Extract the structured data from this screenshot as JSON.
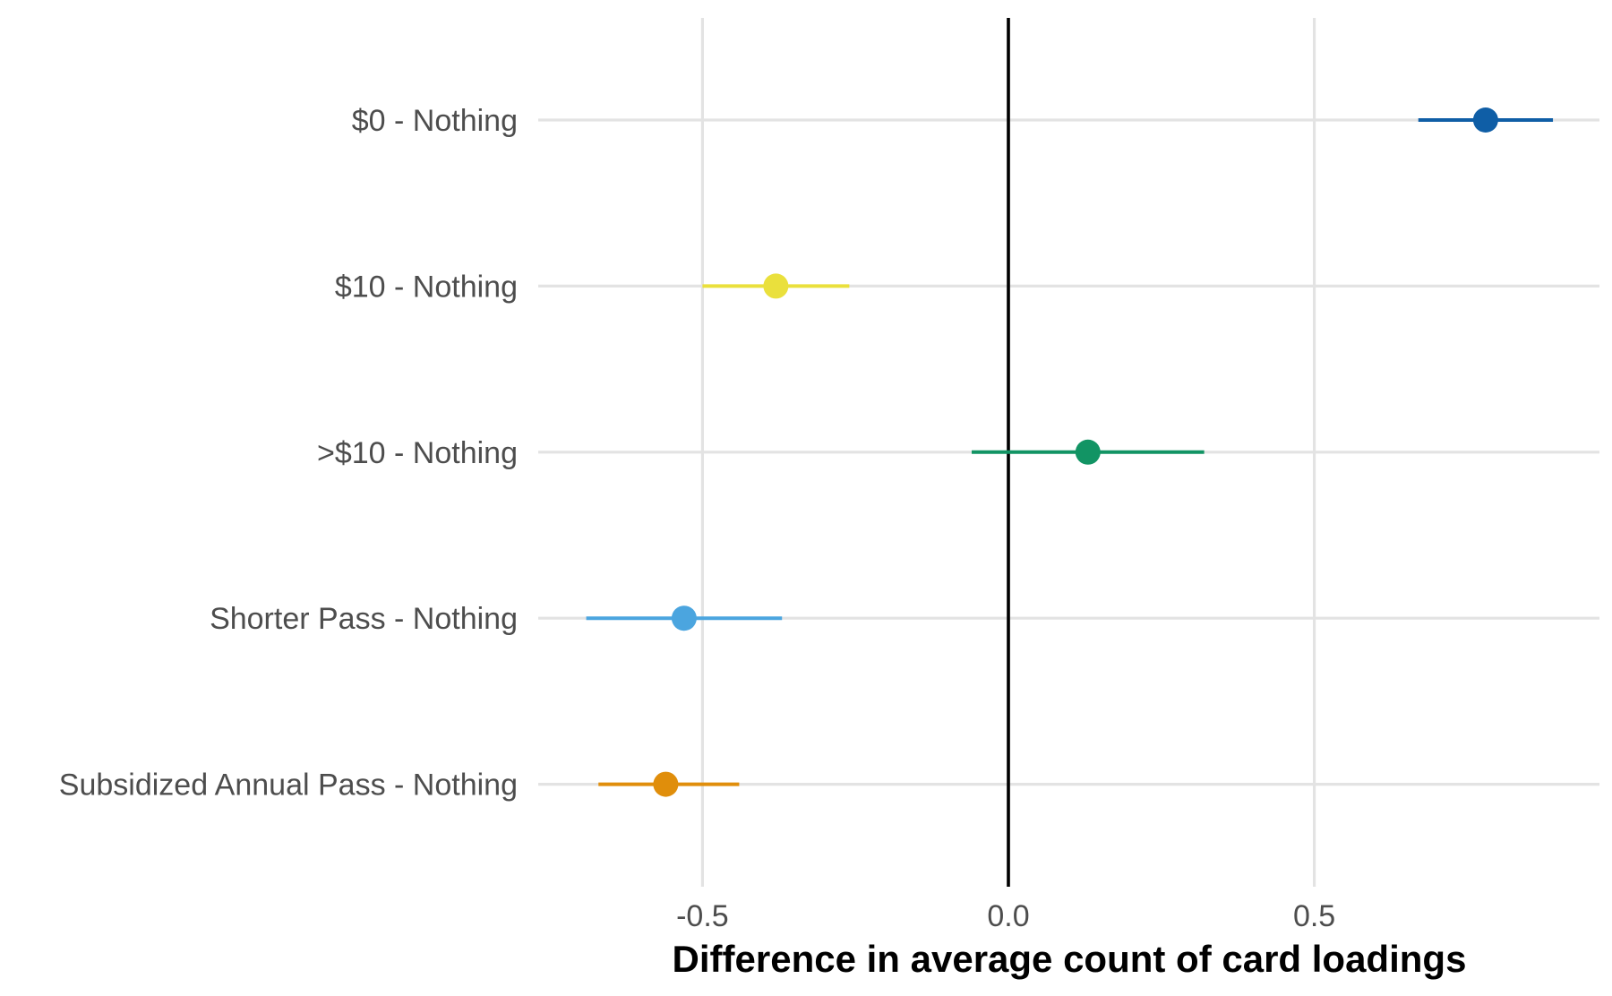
{
  "chart_data": {
    "type": "scatter",
    "subtype": "dot-and-interval",
    "title": "",
    "xlabel": "Difference in average count of card loadings",
    "ylabel": "",
    "xlim": [
      -0.83,
      0.97
    ],
    "x_ticks": [
      {
        "value": -0.5,
        "label": "-0.5"
      },
      {
        "value": 0.0,
        "label": "0.0"
      },
      {
        "value": 0.5,
        "label": "0.5"
      }
    ],
    "reference_line_x": 0,
    "grid": true,
    "legend": "none",
    "points": [
      {
        "category": "$0 - Nothing",
        "estimate": 0.78,
        "lower": 0.67,
        "upper": 0.89,
        "color": "#0F5EA6"
      },
      {
        "category": "$10 - Nothing",
        "estimate": -0.38,
        "lower": -0.5,
        "upper": -0.26,
        "color": "#EAE03C"
      },
      {
        "category": ">$10 - Nothing",
        "estimate": 0.13,
        "lower": -0.06,
        "upper": 0.32,
        "color": "#129464"
      },
      {
        "category": "Shorter Pass - Nothing",
        "estimate": -0.53,
        "lower": -0.69,
        "upper": -0.37,
        "color": "#4BA5DF"
      },
      {
        "category": "Subsidized Annual Pass - Nothing",
        "estimate": -0.56,
        "lower": -0.67,
        "upper": -0.44,
        "color": "#E08E0B"
      }
    ]
  }
}
